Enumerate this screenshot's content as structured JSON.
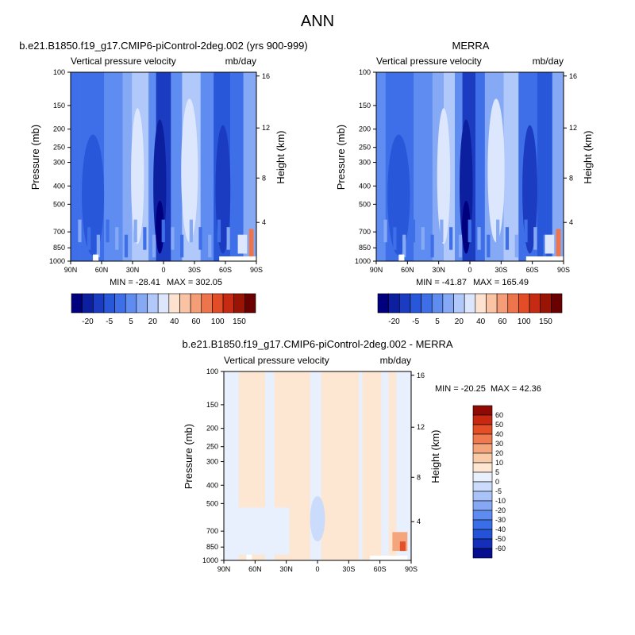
{
  "figure_title": "ANN",
  "colors": {
    "model_palette": [
      "#00007f",
      "#0c1f9e",
      "#1b3bc0",
      "#2957d9",
      "#3e6fe8",
      "#5e8cf0",
      "#86a9f6",
      "#b0c8fa",
      "#dce6fc",
      "#fde2d0",
      "#f9c3a4",
      "#f49d76",
      "#ee744b",
      "#e24c26",
      "#c72a12",
      "#9a1406",
      "#6b0000"
    ],
    "diff_palette": [
      "#070d8f",
      "#1530b8",
      "#2453d8",
      "#3a6ee6",
      "#5e8bf0",
      "#85a7f4",
      "#a9c2f7",
      "#cbdbfb",
      "#e8f0fd",
      "#fde6d2",
      "#f9caa8",
      "#f5a57c",
      "#ef7a4f",
      "#e44f27",
      "#c82810",
      "#8f0a02"
    ]
  },
  "chart_data": [
    {
      "type": "heatmap",
      "title": "b.e21.B1850.f19_g17.CMIP6-piControl-2deg.002 (yrs 900-999)",
      "left_string": "Vertical pressure velocity",
      "right_string": "mb/day",
      "xlabel": "",
      "ylabel": "Pressure (mb)",
      "y2label": "Height (km)",
      "x_ticks": [
        "90N",
        "60N",
        "30N",
        "0",
        "30S",
        "60S",
        "90S"
      ],
      "y_ticks": [
        100,
        150,
        200,
        250,
        300,
        400,
        500,
        700,
        850,
        1000
      ],
      "y2_ticks": [
        16,
        12,
        8,
        4
      ],
      "ylim": [
        1000,
        100
      ],
      "y_scale": "log",
      "min_label": "MIN = -28.41",
      "max_label": "MAX = 302.05",
      "min": -28.41,
      "max": 302.05,
      "colorbar": {
        "orientation": "horizontal",
        "levels": [
          -30,
          -25,
          -20,
          -15,
          -10,
          -5,
          0,
          5,
          10,
          20,
          30,
          40,
          50,
          60,
          80,
          100,
          125,
          150
        ],
        "tick_labels": [
          "-20",
          "-5",
          "5",
          "20",
          "40",
          "60",
          "100",
          "150"
        ]
      }
    },
    {
      "type": "heatmap",
      "title": "MERRA",
      "left_string": "Vertical pressure velocity",
      "right_string": "mb/day",
      "xlabel": "",
      "ylabel": "Pressure (mb)",
      "y2label": "Height (km)",
      "x_ticks": [
        "90N",
        "60N",
        "30N",
        "0",
        "30S",
        "60S",
        "90S"
      ],
      "y_ticks": [
        100,
        150,
        200,
        250,
        300,
        400,
        500,
        700,
        850,
        1000
      ],
      "y2_ticks": [
        16,
        12,
        8,
        4
      ],
      "ylim": [
        1000,
        100
      ],
      "y_scale": "log",
      "min_label": "MIN = -41.87",
      "max_label": "MAX = 165.49",
      "min": -41.87,
      "max": 165.49,
      "colorbar": {
        "orientation": "horizontal",
        "levels": [
          -30,
          -25,
          -20,
          -15,
          -10,
          -5,
          0,
          5,
          10,
          20,
          30,
          40,
          50,
          60,
          80,
          100,
          125,
          150
        ],
        "tick_labels": [
          "-20",
          "-5",
          "5",
          "20",
          "40",
          "60",
          "100",
          "150"
        ]
      }
    },
    {
      "type": "heatmap",
      "title": "b.e21.B1850.f19_g17.CMIP6-piControl-2deg.002 - MERRA",
      "left_string": "Vertical pressure velocity",
      "right_string": "mb/day",
      "xlabel": "",
      "ylabel": "Pressure (mb)",
      "y2label": "Height (km)",
      "x_ticks": [
        "90N",
        "60N",
        "30N",
        "0",
        "30S",
        "60S",
        "90S"
      ],
      "y_ticks": [
        100,
        150,
        200,
        250,
        300,
        400,
        500,
        700,
        850,
        1000
      ],
      "y2_ticks": [
        16,
        12,
        8,
        4
      ],
      "ylim": [
        1000,
        100
      ],
      "y_scale": "log",
      "min_label": "MIN = -20.25",
      "max_label": "MAX =  42.36",
      "min": -20.25,
      "max": 42.36,
      "colorbar": {
        "orientation": "vertical",
        "tick_labels": [
          "60",
          "50",
          "40",
          "30",
          "20",
          "10",
          "5",
          "0",
          "-5",
          "-10",
          "-20",
          "-30",
          "-40",
          "-50",
          "-60"
        ]
      }
    }
  ]
}
